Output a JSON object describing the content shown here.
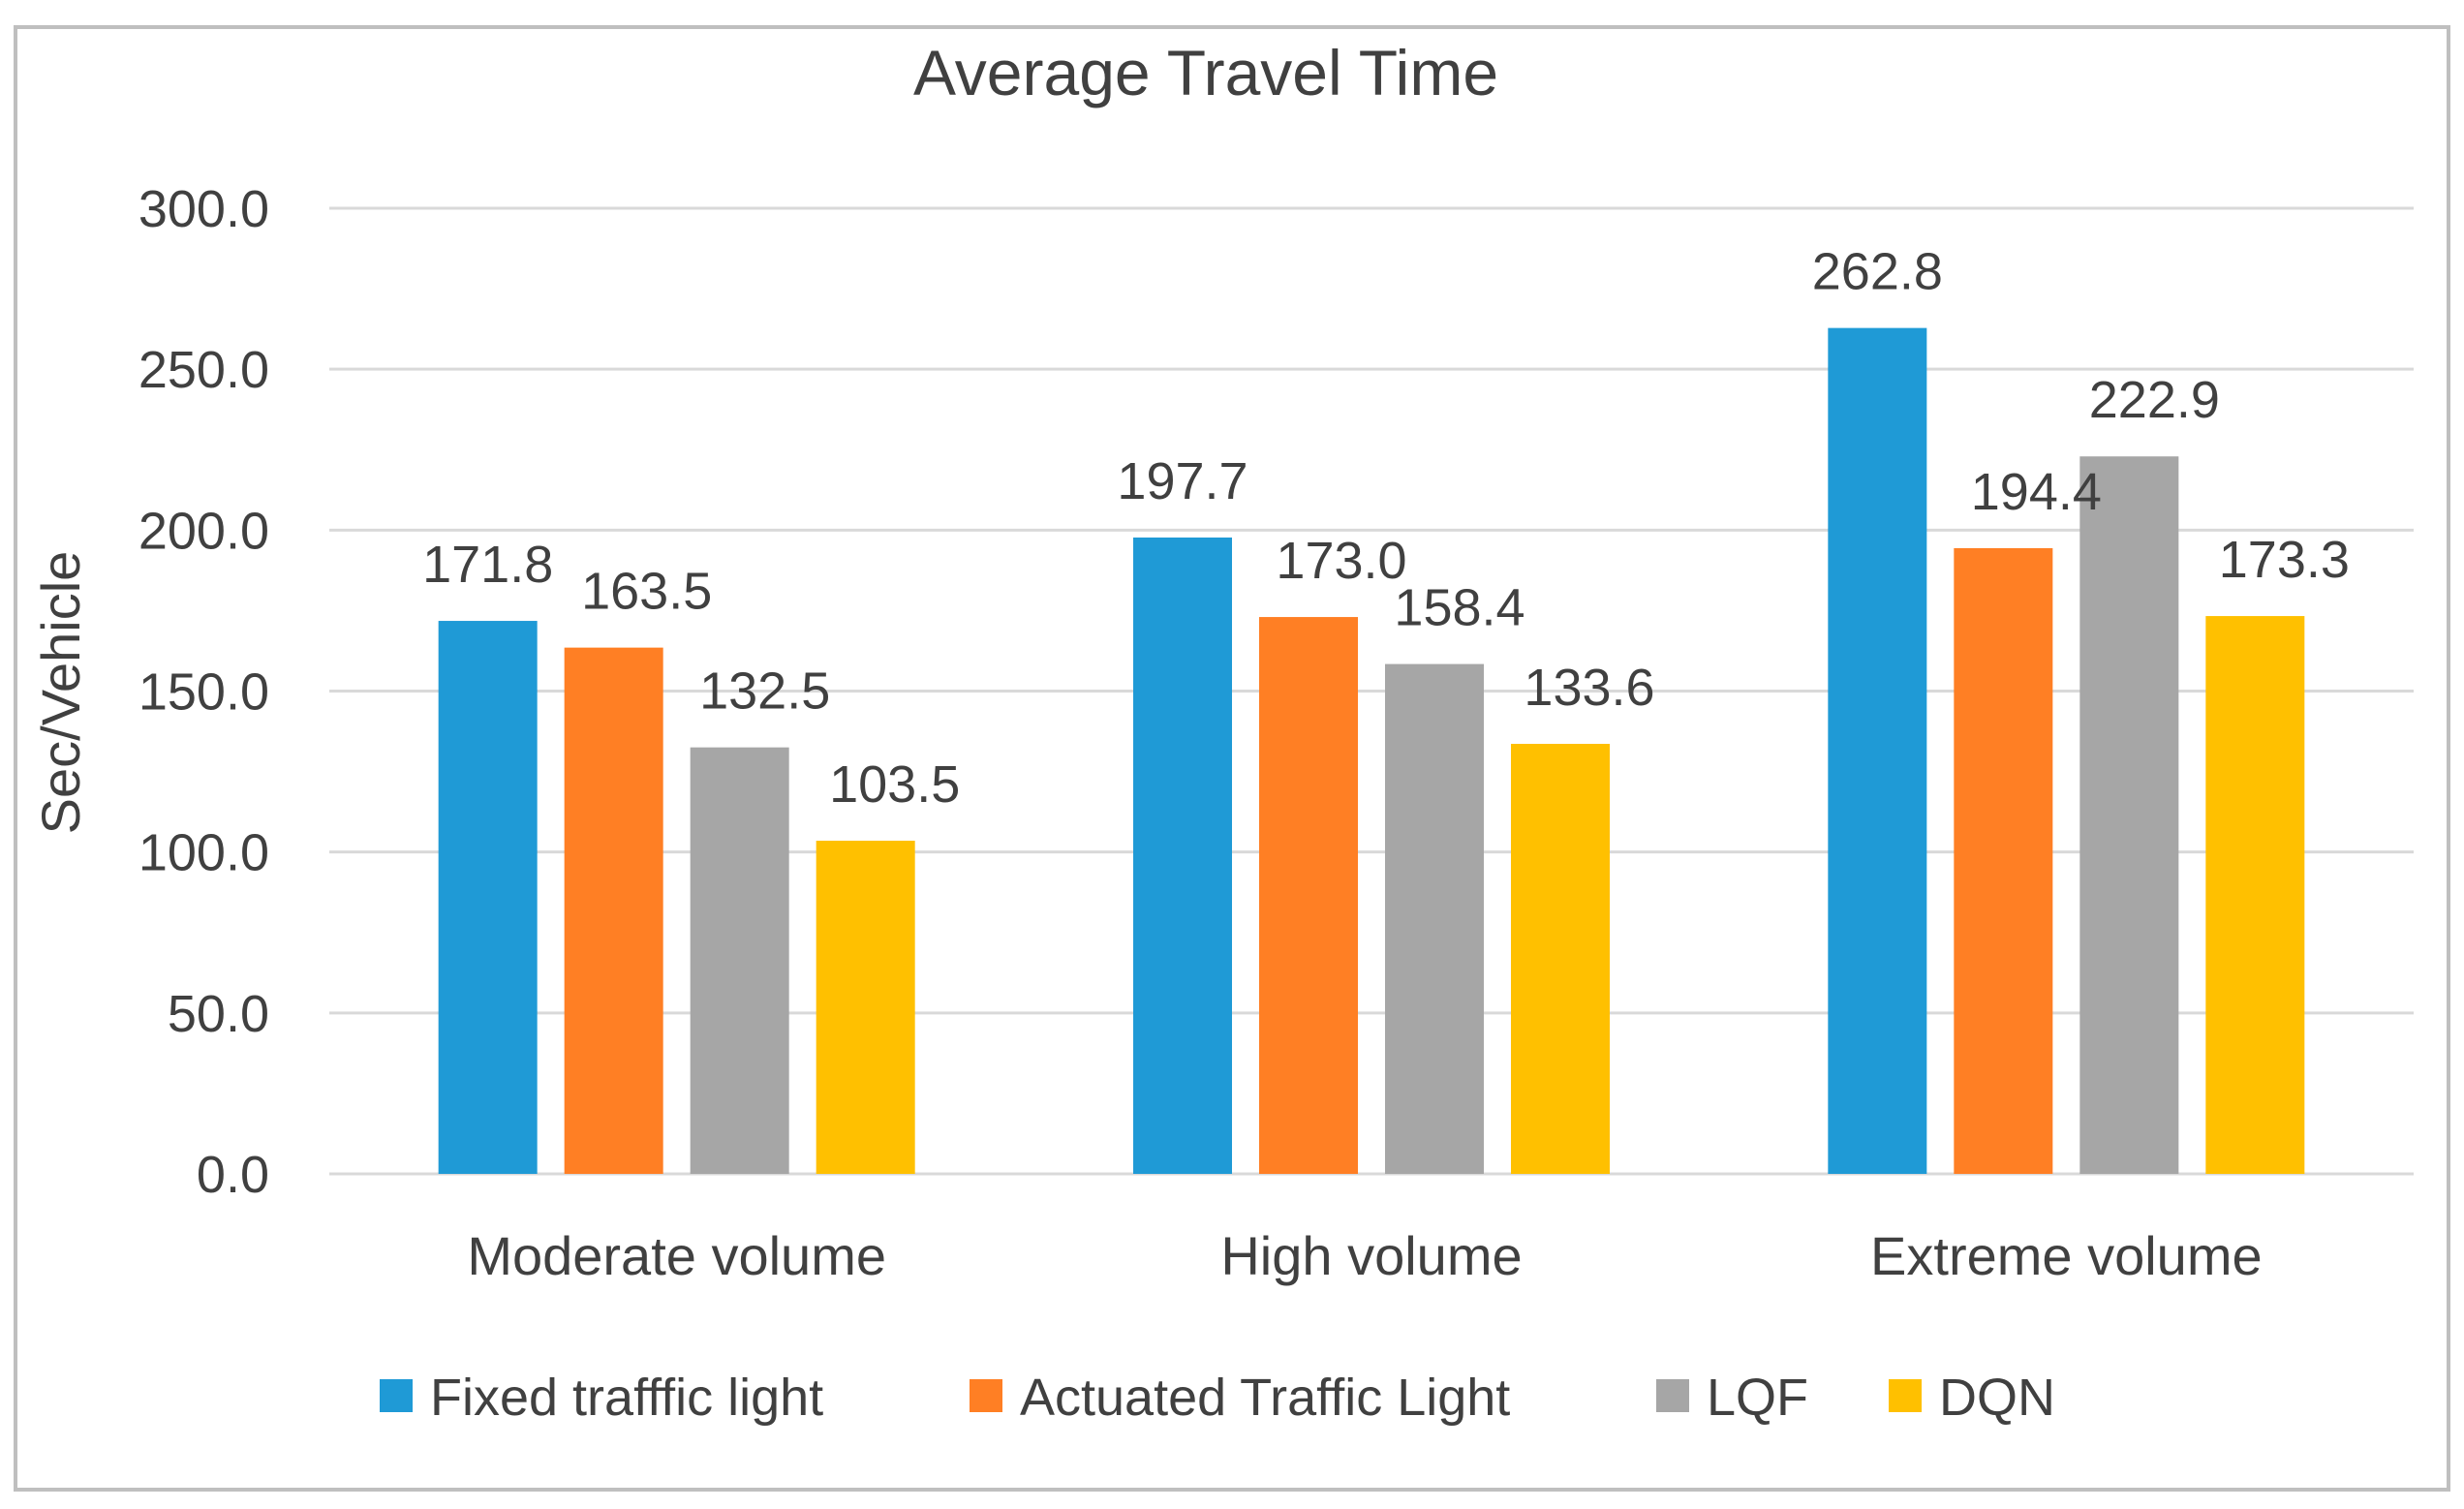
{
  "chart_data": {
    "type": "bar",
    "title": "Average Travel Time",
    "xlabel": "",
    "ylabel": "Sec/Vehicle",
    "ylim": [
      0,
      300
    ],
    "yticks": [
      "0.0",
      "50.0",
      "100.0",
      "150.0",
      "200.0",
      "250.0",
      "300.0"
    ],
    "ytick_values": [
      0,
      50,
      100,
      150,
      200,
      250,
      300
    ],
    "grid": true,
    "legend_position": "bottom",
    "categories": [
      "Moderate volume",
      "High volume",
      "Extreme volume"
    ],
    "series": [
      {
        "name": "Fixed trafffic light",
        "color": "#1F9AD6",
        "values": [
          171.8,
          197.7,
          262.8
        ],
        "labels": [
          "171.8",
          "197.7",
          "262.8"
        ]
      },
      {
        "name": "Actuated Traffic Light",
        "color": "#FF7F24",
        "values": [
          163.5,
          173.0,
          194.4
        ],
        "labels": [
          "163.5",
          "173.0",
          "194.4"
        ]
      },
      {
        "name": "LQF",
        "color": "#A6A6A6",
        "values": [
          132.5,
          158.4,
          222.9
        ],
        "labels": [
          "132.5",
          "158.4",
          "222.9"
        ]
      },
      {
        "name": "DQN",
        "color": "#FFC000",
        "values": [
          103.5,
          133.6,
          173.3
        ],
        "labels": [
          "103.5",
          "133.6",
          "173.3"
        ]
      }
    ],
    "colors": {
      "text": "#404040",
      "grid": "#D9D9D9",
      "frame": "#BFBFBF"
    }
  }
}
